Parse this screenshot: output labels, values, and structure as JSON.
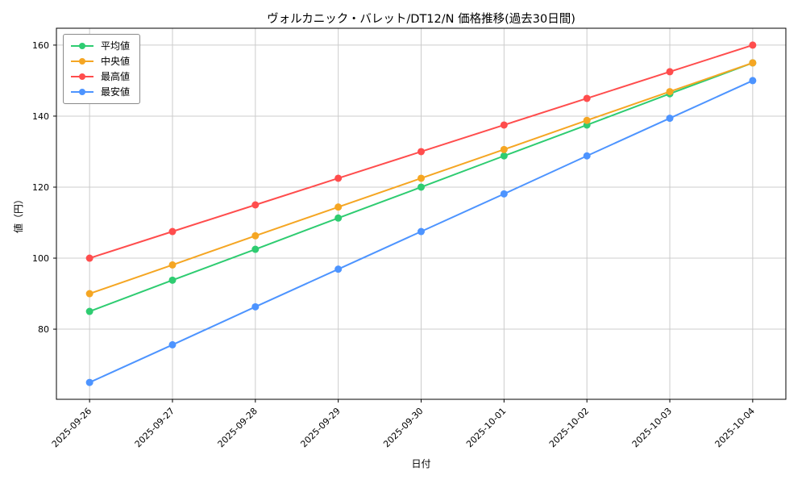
{
  "chart_data": {
    "type": "line",
    "title": "ヴォルカニック・バレット/DT12/N 価格推移(過去30日間)",
    "xlabel": "日付",
    "ylabel": "値（円）",
    "categories": [
      "2025-09-26",
      "2025-09-27",
      "2025-09-28",
      "2025-09-29",
      "2025-09-30",
      "2025-10-01",
      "2025-10-02",
      "2025-10-03",
      "2025-10-04"
    ],
    "series": [
      {
        "name": "平均値",
        "color": "#2ecc71",
        "values": [
          85,
          93.8,
          102.5,
          111.3,
          120,
          128.8,
          137.5,
          146.3,
          155
        ]
      },
      {
        "name": "中央値",
        "color": "#f5a623",
        "values": [
          90,
          98.1,
          106.3,
          114.4,
          122.5,
          130.6,
          138.8,
          146.9,
          155
        ]
      },
      {
        "name": "最高値",
        "color": "#ff4d4d",
        "values": [
          100,
          107.5,
          115,
          122.5,
          130,
          137.5,
          145,
          152.5,
          160
        ]
      },
      {
        "name": "最安値",
        "color": "#4d94ff",
        "values": [
          65,
          75.6,
          86.3,
          96.9,
          107.5,
          118.1,
          128.8,
          139.4,
          150
        ]
      }
    ],
    "yticks": [
      80,
      100,
      120,
      140,
      160
    ],
    "ylim": [
      60.25,
      164.75
    ],
    "grid": true,
    "grid_color": "#cccccc",
    "axis_color": "#000000",
    "legend_position": "upper-left"
  }
}
